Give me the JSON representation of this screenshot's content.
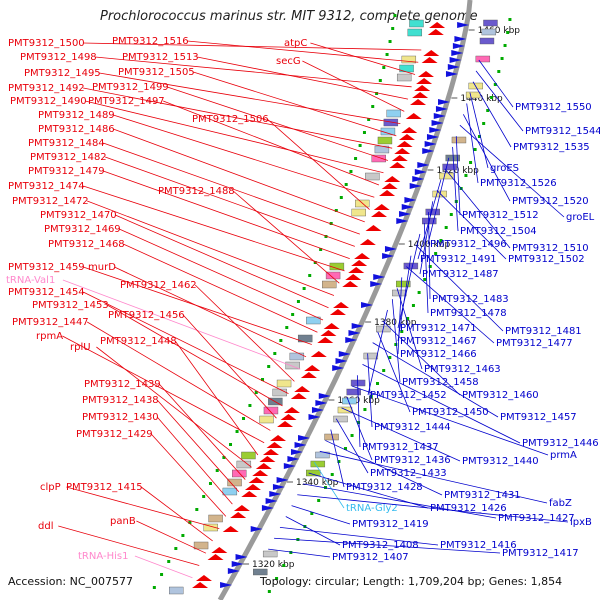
{
  "header": {
    "title": "Prochlorococcus marinus str. MIT 9312, complete genome"
  },
  "footer": {
    "accession": "Accession: NC_007577",
    "summary": "Topology: circular; Length: 1,709,204 bp; Genes: 1,854"
  },
  "colors": {
    "forward_label": "#e8000b",
    "reverse_label": "#0000cc",
    "trna_forward": "#ff88cc",
    "trna_reverse": "#33bbee",
    "backbone": "#999999",
    "tick": "#00aa00"
  },
  "ruler": [
    {
      "label": "1460 kbp"
    },
    {
      "label": "1440 kbp"
    },
    {
      "label": "1420 kbp"
    },
    {
      "label": "1400 kbp"
    },
    {
      "label": "1380 kbp"
    },
    {
      "label": "1360 kbp"
    },
    {
      "label": "1340 kbp"
    },
    {
      "label": "1320 kbp"
    }
  ],
  "forward_labels": [
    "PMT9312_1500",
    "PMT9312_1516",
    "atpC",
    "PMT9312_1498",
    "PMT9312_1513",
    "secG",
    "PMT9312_1495",
    "PMT9312_1505",
    "PMT9312_1492",
    "PMT9312_1499",
    "PMT9312_1490",
    "PMT9312_1497",
    "PMT9312_1489",
    "PMT9312_1506",
    "PMT9312_1486",
    "PMT9312_1484",
    "PMT9312_1482",
    "PMT9312_1479",
    "PMT9312_1474",
    "PMT9312_1488",
    "PMT9312_1472",
    "PMT9312_1470",
    "PMT9312_1469",
    "PMT9312_1468",
    "PMT9312_1459",
    "murD",
    "tRNA-Val1",
    "PMT9312_1462",
    "PMT9312_1454",
    "PMT9312_1453",
    "PMT9312_1456",
    "PMT9312_1447",
    "rpmA",
    "PMT9312_1448",
    "rplU",
    "PMT9312_1439",
    "PMT9312_1438",
    "PMT9312_1430",
    "PMT9312_1429",
    "clpP",
    "PMT9312_1415",
    "panB",
    "ddl",
    "tRNA-His1"
  ],
  "reverse_labels": [
    "PMT9312_1550",
    "PMT9312_1544",
    "PMT9312_1535",
    "groES",
    "PMT9312_1526",
    "PMT9312_1520",
    "groEL",
    "PMT9312_1512",
    "PMT9312_1504",
    "PMT9312_1496",
    "PMT9312_1510",
    "PMT9312_1491",
    "PMT9312_1502",
    "PMT9312_1487",
    "PMT9312_1483",
    "PMT9312_1478",
    "PMT9312_1471",
    "PMT9312_1481",
    "PMT9312_1467",
    "PMT9312_1477",
    "PMT9312_1466",
    "PMT9312_1463",
    "PMT9312_1458",
    "PMT9312_1452",
    "PMT9312_1460",
    "PMT9312_1450",
    "PMT9312_1457",
    "PMT9312_1444",
    "PMT9312_1446",
    "PMT9312_1437",
    "prmA",
    "PMT9312_1436",
    "PMT9312_1440",
    "PMT9312_1433",
    "PMT9312_1428",
    "PMT9312_1431",
    "fabZ",
    "tRNA-Gly2",
    "PMT9312_1426",
    "PMT9312_1427",
    "lpxB",
    "PMT9312_1419",
    "PMT9312_1408",
    "PMT9312_1416",
    "PMT9312_1417",
    "PMT9312_1407"
  ]
}
